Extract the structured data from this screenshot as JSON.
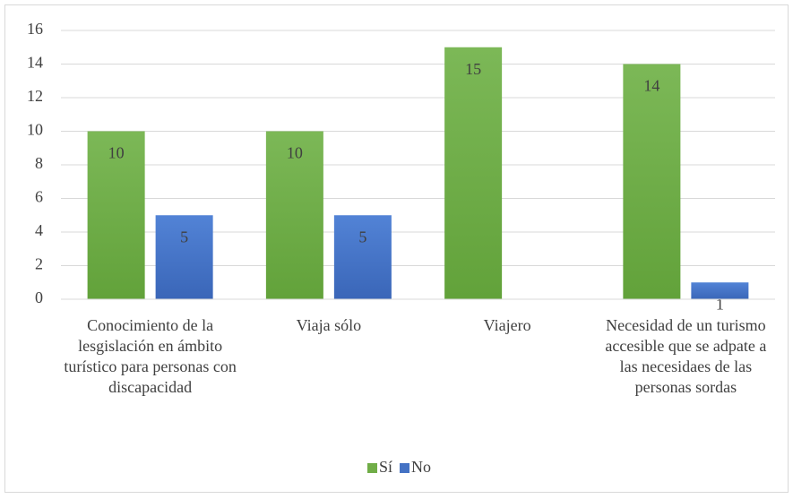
{
  "chart_data": {
    "type": "bar",
    "categories": [
      "Conocimiento de la lesgislación en ámbito turístico para personas con discapacidad",
      "Viaja sólo",
      "Viajero",
      "Necesidad de un turismo accesible que se adpate a las necesidaes de las personas sordas"
    ],
    "series": [
      {
        "name": "Sí",
        "color": "#70ad47",
        "values": [
          10,
          10,
          15,
          14
        ]
      },
      {
        "name": "No",
        "color": "#4472c4",
        "values": [
          5,
          5,
          null,
          1
        ]
      }
    ],
    "ylim": [
      0,
      16
    ],
    "yticks": [
      0,
      2,
      4,
      6,
      8,
      10,
      12,
      14,
      16
    ],
    "grid": true,
    "legend": "bottom"
  }
}
